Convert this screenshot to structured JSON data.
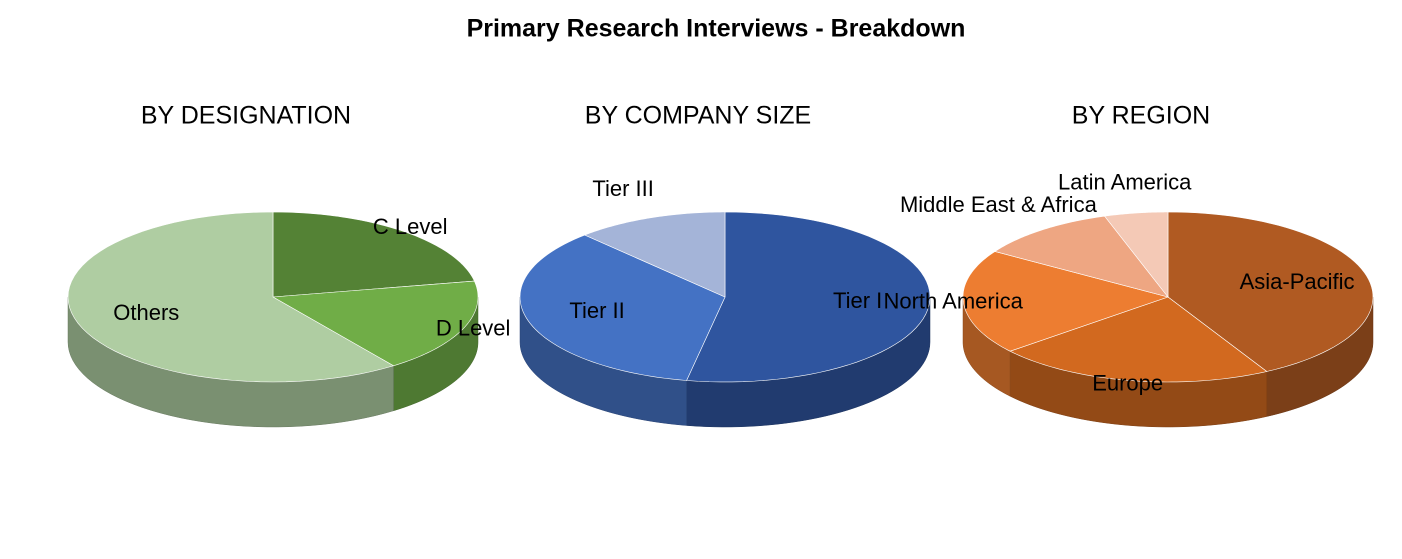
{
  "title": "Primary Research Interviews - Breakdown",
  "chart_data": [
    {
      "type": "pie",
      "title": "BY DESIGNATION",
      "categories": [
        "C Level",
        "D Level",
        "Others"
      ],
      "values": [
        22,
        18,
        60
      ],
      "colors": [
        "#548235",
        "#70ad47",
        "#afcda2"
      ]
    },
    {
      "type": "pie",
      "title": "BY COMPANY SIZE",
      "categories": [
        "Tier I",
        "Tier II",
        "Tier III"
      ],
      "values": [
        53,
        35,
        12
      ],
      "colors": [
        "#2f559f",
        "#4472c4",
        "#a4b4d8"
      ]
    },
    {
      "type": "pie",
      "title": "BY REGION",
      "categories": [
        "Asia-Pacific",
        "Europe",
        "North America",
        "Middle East & Africa",
        "Latin America"
      ],
      "values": [
        42,
        22,
        20,
        11,
        5
      ],
      "colors": [
        "#b05a22",
        "#d2691f",
        "#ed7d31",
        "#eea682",
        "#f4c9b6"
      ]
    }
  ]
}
